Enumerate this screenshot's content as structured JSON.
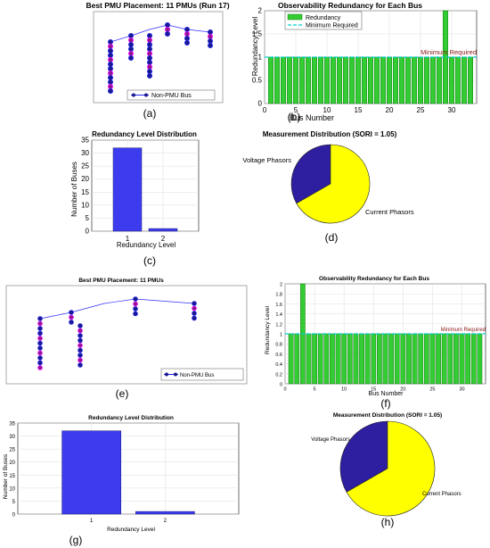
{
  "colors": {
    "pmu_node": "#ff00ff",
    "bus_node": "#2222ee",
    "bus_node_fill": "#1a1a8c",
    "edge": "#3030ff",
    "bar_green": "#33cc33",
    "bar_green_edge": "#006600",
    "bar_blue": "#3c3cee",
    "min_line": "#00d0d0",
    "pie_voltage": "#2e1fa0",
    "pie_current": "#ffff00"
  },
  "labels": {
    "a": "(a)",
    "b": "(b)",
    "c": "(c)",
    "d": "(d)",
    "e": "(e)",
    "f": "(f)",
    "g": "(g)",
    "h": "(h)"
  },
  "chart_data": [
    {
      "id": "a",
      "type": "diagram",
      "title": "Best PMU Placement: 11 PMUs (Run 17)",
      "legend": [
        "Non-PMU Bus"
      ]
    },
    {
      "id": "b",
      "type": "bar",
      "title": "Observability Redundancy for Each Bus",
      "xlabel": "Bus Number",
      "ylabel": "Redundancy Level",
      "x": [
        1,
        2,
        3,
        4,
        5,
        6,
        7,
        8,
        9,
        10,
        11,
        12,
        13,
        14,
        15,
        16,
        17,
        18,
        19,
        20,
        21,
        22,
        23,
        24,
        25,
        26,
        27,
        28,
        29,
        30,
        31,
        32,
        33
      ],
      "values": [
        1,
        1,
        1,
        1,
        1,
        1,
        1,
        1,
        1,
        1,
        1,
        1,
        1,
        1,
        1,
        1,
        1,
        1,
        1,
        1,
        1,
        1,
        1,
        1,
        1,
        1,
        1,
        1,
        2,
        1,
        1,
        1,
        1
      ],
      "xlim": [
        0,
        34
      ],
      "ylim": [
        0,
        2
      ],
      "xticks": [
        "0",
        "5",
        "10",
        "15",
        "20",
        "25",
        "30"
      ],
      "yticks": [
        "0",
        "0.5",
        "1",
        "1.5",
        "2"
      ],
      "series": [
        {
          "name": "Redundancy"
        },
        {
          "name": "Minimum Required"
        }
      ],
      "annotation": "Minimum Required",
      "min_required": 1,
      "legend_position": "top"
    },
    {
      "id": "c",
      "type": "bar",
      "title": "Redundancy Level Distribution",
      "categories": [
        "1",
        "2"
      ],
      "values": [
        32,
        1
      ],
      "xlabel": "Redundancy Level",
      "ylabel": "Number of Buses",
      "ylim": [
        0,
        35
      ],
      "yticks": [
        "0",
        "5",
        "10",
        "15",
        "20",
        "25",
        "30",
        "35"
      ]
    },
    {
      "id": "d",
      "type": "pie",
      "title": "Measurement Distribution (SORI = 1.05)",
      "slices": [
        {
          "label": "Voltage Phasors",
          "value": 33.3
        },
        {
          "label": "Current Phasors",
          "value": 66.7
        }
      ]
    },
    {
      "id": "e",
      "type": "diagram",
      "title": "Best PMU Placement: 11 PMUs",
      "legend": [
        "Non-PMU Bus"
      ]
    },
    {
      "id": "f",
      "type": "bar",
      "title": "Observability Redundancy for Each Bus",
      "xlabel": "Bus Number",
      "ylabel": "Redundancy Level",
      "x": [
        1,
        2,
        3,
        4,
        5,
        6,
        7,
        8,
        9,
        10,
        11,
        12,
        13,
        14,
        15,
        16,
        17,
        18,
        19,
        20,
        21,
        22,
        23,
        24,
        25,
        26,
        27,
        28,
        29,
        30,
        31,
        32,
        33
      ],
      "values": [
        1,
        1,
        2,
        1,
        1,
        1,
        1,
        1,
        1,
        1,
        1,
        1,
        1,
        1,
        1,
        1,
        1,
        1,
        1,
        1,
        1,
        1,
        1,
        1,
        1,
        1,
        1,
        1,
        1,
        1,
        1,
        1,
        1
      ],
      "xlim": [
        0,
        34
      ],
      "ylim": [
        0,
        2
      ],
      "xticks": [
        "0",
        "5",
        "10",
        "15",
        "20",
        "25",
        "30"
      ],
      "yticks": [
        "0",
        "0.2",
        "0.4",
        "0.6",
        "0.8",
        "1",
        "1.2",
        "1.4",
        "1.6",
        "1.8",
        "2"
      ],
      "annotation": "Minimum Required",
      "min_required": 1
    },
    {
      "id": "g",
      "type": "bar",
      "title": "Redundancy Level Distribution",
      "categories": [
        "1",
        "2"
      ],
      "values": [
        32,
        1
      ],
      "xlabel": "Redundancy Level",
      "ylabel": "Number of Buses",
      "ylim": [
        0,
        35
      ],
      "yticks": [
        "0",
        "5",
        "10",
        "15",
        "20",
        "25",
        "30",
        "35"
      ]
    },
    {
      "id": "h",
      "type": "pie",
      "title": "Measurement Distribution (SORI = 1.05)",
      "slices": [
        {
          "label": "Voltage Phasors",
          "value": 33.3
        },
        {
          "label": "Current Phasors",
          "value": 66.7
        }
      ]
    }
  ]
}
